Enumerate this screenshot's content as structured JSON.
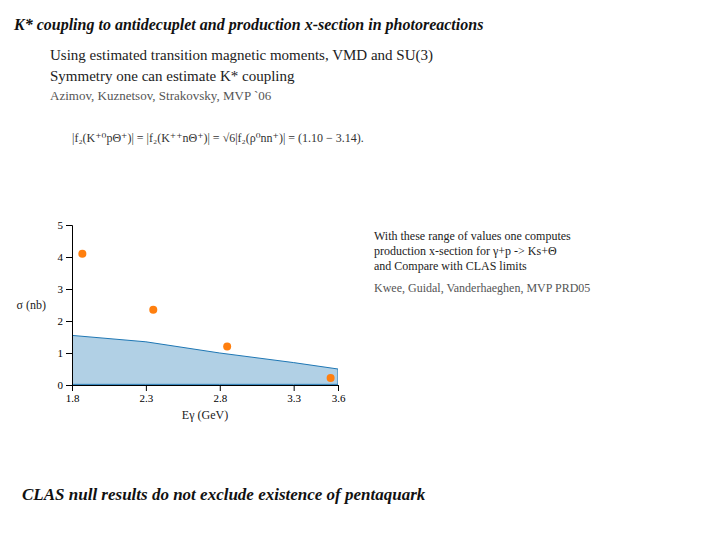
{
  "chart_data": {
    "type": "scatter",
    "title": "K* coupling to antidecuplet and production x-section in photoreactions",
    "subtitle": [
      "Using estimated transition magnetic moments, VMD and SU(3)",
      "Symmetry one can estimate K* coupling"
    ],
    "annotations": [
      "Azimov, Kuznetsov, Strakovsky, MVP `06",
      "|f₂(K⁺⁰pΘ⁺)| = |f₂(K⁺⁺nΘ⁺)| = √6|f₂(ρ⁰nn⁺)| = (1.10 − 3.14).",
      "With these range of values one computes",
      "production x-section for γ+p -> Ks+Θ",
      "and Compare with CLAS limits",
      "Kwee, Guidal, Vanderhaeghen, MVP  PRD05",
      "CLAS null results do not exclude existence of pentaquark"
    ],
    "x_label": "Eγ (GeV)",
    "y_label": "σ (nb)",
    "xlim": [
      1.8,
      3.6
    ],
    "ylim": [
      0,
      5
    ],
    "xticks": [
      1.8,
      2.3,
      2.8,
      3.3,
      3.6
    ],
    "yticks": [
      0,
      1,
      2,
      3,
      4,
      5
    ],
    "grid": false,
    "series": [
      {
        "type": "area",
        "x": [
          1.8,
          2.3,
          2.8,
          3.3,
          3.6
        ],
        "values": [
          1.55,
          1.35,
          1.0,
          0.7,
          0.5
        ],
        "lower": [
          0.02,
          0.02,
          0.02,
          0.02,
          0.02
        ]
      },
      {
        "type": "scatter",
        "x": [
          1.87,
          2.35,
          2.85,
          3.55
        ],
        "values": [
          4.1,
          2.35,
          1.2,
          0.22
        ]
      }
    ]
  }
}
